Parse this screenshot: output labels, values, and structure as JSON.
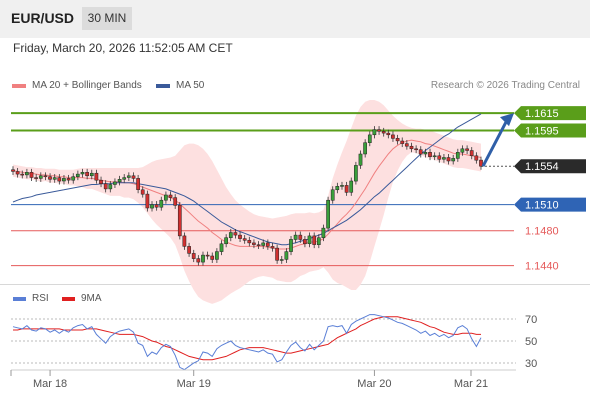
{
  "header": {
    "pair": "EUR/USD",
    "timeframe": "30 MIN"
  },
  "datetime": "Friday, March 20, 2026 11:52:05 AM CET",
  "legend": {
    "ma20_label": "MA 20 + Bollinger Bands",
    "ma50_label": "MA 50",
    "credit": "Research © 2026 Trading Central"
  },
  "rsi_legend": {
    "rsi_label": "RSI",
    "ma_label": "9MA"
  },
  "colors": {
    "up": "#3a9e3a",
    "down": "#d03030",
    "bb_fill": "#fde0e0",
    "ma20": "#f08080",
    "ma50": "#3a5a9a",
    "green_level": "#5a9e1a",
    "blue_level": "#2f64b5",
    "red_level": "#e55a5a",
    "current": "#2a2a2a",
    "rsi": "#5a7fd6",
    "rsi_ma": "#e02020"
  },
  "chart_data": [
    {
      "type": "candlestick",
      "title": "EUR/USD 30 MIN",
      "x_tick_labels": [
        "Mar 18",
        "Mar 19",
        "Mar 20",
        "Mar 21"
      ],
      "ylim": [
        1.142,
        1.163
      ],
      "levels": [
        {
          "value": 1.1615,
          "label": "1.1615",
          "kind": "resistance"
        },
        {
          "value": 1.1595,
          "label": "1.1595",
          "kind": "resistance"
        },
        {
          "value": 1.1554,
          "label": "1.1554",
          "kind": "current"
        },
        {
          "value": 1.151,
          "label": "1.1510",
          "kind": "pivot"
        },
        {
          "value": 1.148,
          "label": "1.1480",
          "kind": "support"
        },
        {
          "value": 1.144,
          "label": "1.1440",
          "kind": "support"
        }
      ],
      "close": [
        1.1548,
        1.1545,
        1.1544,
        1.1547,
        1.1541,
        1.154,
        1.1543,
        1.1542,
        1.1539,
        1.1541,
        1.1537,
        1.154,
        1.1538,
        1.1542,
        1.1545,
        1.1547,
        1.1543,
        1.1546,
        1.1538,
        1.1534,
        1.1528,
        1.1533,
        1.1536,
        1.1539,
        1.1541,
        1.1543,
        1.154,
        1.1527,
        1.1522,
        1.1506,
        1.151,
        1.1507,
        1.1515,
        1.1521,
        1.1518,
        1.1509,
        1.1474,
        1.1462,
        1.1454,
        1.1448,
        1.1444,
        1.1452,
        1.1451,
        1.1447,
        1.1456,
        1.1465,
        1.1472,
        1.1478,
        1.1475,
        1.1471,
        1.1469,
        1.1466,
        1.1464,
        1.1463,
        1.1466,
        1.1462,
        1.146,
        1.1446,
        1.1447,
        1.1456,
        1.147,
        1.1475,
        1.147,
        1.1465,
        1.1474,
        1.1464,
        1.1472,
        1.1483,
        1.1515,
        1.1527,
        1.1531,
        1.1532,
        1.1524,
        1.1537,
        1.1555,
        1.1568,
        1.1581,
        1.159,
        1.1596,
        1.1594,
        1.1592,
        1.159,
        1.1586,
        1.1583,
        1.158,
        1.1577,
        1.1574,
        1.1573,
        1.1568,
        1.157,
        1.1565,
        1.1566,
        1.1562,
        1.1564,
        1.156,
        1.1563,
        1.157,
        1.1574,
        1.1572,
        1.1566,
        1.1561,
        1.1554
      ],
      "ma20": [
        1.1549,
        1.1548,
        1.1547,
        1.1546,
        1.1546,
        1.1545,
        1.1544,
        1.1544,
        1.1543,
        1.1543,
        1.1542,
        1.1542,
        1.1541,
        1.1541,
        1.1541,
        1.1541,
        1.154,
        1.154,
        1.1539,
        1.1538,
        1.1537,
        1.1536,
        1.1536,
        1.1536,
        1.1535,
        1.1535,
        1.1534,
        1.1532,
        1.153,
        1.1528,
        1.1526,
        1.1524,
        1.1522,
        1.152,
        1.1518,
        1.1515,
        1.1511,
        1.1506,
        1.1501,
        1.1496,
        1.1491,
        1.1487,
        1.1483,
        1.1478,
        1.1474,
        1.147,
        1.1467,
        1.1465,
        1.1463,
        1.1462,
        1.1462,
        1.1462,
        1.1462,
        1.1462,
        1.1462,
        1.1461,
        1.146,
        1.1459,
        1.1459,
        1.1459,
        1.146,
        1.1462,
        1.1464,
        1.1465,
        1.1467,
        1.1467,
        1.1468,
        1.1471,
        1.1476,
        1.1482,
        1.1488,
        1.1494,
        1.1499,
        1.1505,
        1.1512,
        1.152,
        1.1528,
        1.1537,
        1.1546,
        1.1554,
        1.1561,
        1.1568,
        1.1574,
        1.1578,
        1.1581,
        1.1583,
        1.1584,
        1.1583,
        1.1582,
        1.158,
        1.1579,
        1.1577,
        1.1575,
        1.1573,
        1.1571,
        1.1569,
        1.1568,
        1.1568,
        1.1567,
        1.1566,
        1.1565,
        1.1564
      ],
      "bb_upper": [
        1.1556,
        1.1555,
        1.1554,
        1.1553,
        1.1553,
        1.1552,
        1.1552,
        1.1551,
        1.1551,
        1.1551,
        1.155,
        1.155,
        1.155,
        1.155,
        1.1551,
        1.1552,
        1.1552,
        1.1552,
        1.1552,
        1.1552,
        1.1552,
        1.1552,
        1.1552,
        1.1552,
        1.1552,
        1.1552,
        1.1552,
        1.1552,
        1.1553,
        1.1556,
        1.1559,
        1.1561,
        1.1562,
        1.1563,
        1.1564,
        1.1566,
        1.1572,
        1.1578,
        1.158,
        1.158,
        1.1578,
        1.1574,
        1.1568,
        1.156,
        1.155,
        1.154,
        1.153,
        1.1522,
        1.1515,
        1.151,
        1.1506,
        1.1502,
        1.1499,
        1.1497,
        1.1496,
        1.1495,
        1.1494,
        1.1495,
        1.1496,
        1.1497,
        1.1499,
        1.15,
        1.15,
        1.15,
        1.1501,
        1.15,
        1.1501,
        1.1504,
        1.152,
        1.154,
        1.1556,
        1.157,
        1.1583,
        1.1598,
        1.1612,
        1.1622,
        1.1628,
        1.163,
        1.163,
        1.1628,
        1.1624,
        1.1618,
        1.1612,
        1.1607,
        1.1603,
        1.16,
        1.1598,
        1.1597,
        1.1597,
        1.1596,
        1.1595,
        1.1593,
        1.1591,
        1.1589,
        1.1587,
        1.1585,
        1.1584,
        1.1584,
        1.1583,
        1.1582,
        1.1581,
        1.158
      ],
      "bb_lower": [
        1.1542,
        1.1541,
        1.154,
        1.1539,
        1.1539,
        1.1538,
        1.1536,
        1.1537,
        1.1535,
        1.1535,
        1.1534,
        1.1534,
        1.1532,
        1.1532,
        1.1531,
        1.153,
        1.1528,
        1.1528,
        1.1526,
        1.1524,
        1.1522,
        1.152,
        1.152,
        1.152,
        1.1518,
        1.1518,
        1.1516,
        1.1512,
        1.1507,
        1.15,
        1.1493,
        1.1487,
        1.1482,
        1.1477,
        1.1472,
        1.1464,
        1.145,
        1.1434,
        1.1422,
        1.1412,
        1.1404,
        1.14,
        1.1398,
        1.1396,
        1.1398,
        1.14,
        1.1404,
        1.1408,
        1.1411,
        1.1414,
        1.1418,
        1.1422,
        1.1425,
        1.1427,
        1.1428,
        1.1427,
        1.1426,
        1.1423,
        1.1422,
        1.1421,
        1.1421,
        1.1424,
        1.1428,
        1.143,
        1.1433,
        1.1434,
        1.1435,
        1.1438,
        1.1432,
        1.1424,
        1.142,
        1.1418,
        1.1415,
        1.1412,
        1.1412,
        1.1418,
        1.1428,
        1.1444,
        1.1462,
        1.148,
        1.1498,
        1.1518,
        1.1536,
        1.1549,
        1.1559,
        1.1566,
        1.157,
        1.1569,
        1.1567,
        1.1564,
        1.1563,
        1.1561,
        1.1559,
        1.1557,
        1.1555,
        1.1553,
        1.1552,
        1.1552,
        1.1551,
        1.155,
        1.1549,
        1.1548
      ],
      "ma50": [
        1.1513,
        1.1515,
        1.1517,
        1.1518,
        1.1519,
        1.1521,
        1.1522,
        1.1523,
        1.1524,
        1.1525,
        1.1526,
        1.1527,
        1.1528,
        1.1529,
        1.153,
        1.1531,
        1.1532,
        1.1533,
        1.1533,
        1.1534,
        1.1534,
        1.1534,
        1.1535,
        1.1535,
        1.1535,
        1.1535,
        1.1535,
        1.1534,
        1.1533,
        1.1532,
        1.1531,
        1.153,
        1.1529,
        1.1528,
        1.1526,
        1.1524,
        1.1522,
        1.152,
        1.1517,
        1.1514,
        1.151,
        1.1506,
        1.1502,
        1.1498,
        1.1494,
        1.149,
        1.1487,
        1.1484,
        1.1481,
        1.1479,
        1.1477,
        1.1475,
        1.1473,
        1.1471,
        1.1469,
        1.1467,
        1.1466,
        1.1465,
        1.1464,
        1.1464,
        1.1465,
        1.1466,
        1.1468,
        1.1469,
        1.1471,
        1.1473,
        1.1475,
        1.1477,
        1.148,
        1.1483,
        1.1486,
        1.1489,
        1.1492,
        1.1496,
        1.15,
        1.1504,
        1.1509,
        1.1514,
        1.1519,
        1.1523,
        1.1528,
        1.1533,
        1.1538,
        1.1543,
        1.1548,
        1.1553,
        1.1558,
        1.1563,
        1.1568,
        1.1572,
        1.1576,
        1.158,
        1.1584,
        1.1588,
        1.1591,
        1.1595,
        1.1599,
        1.1602,
        1.1605,
        1.1608,
        1.1611,
        1.1614
      ]
    },
    {
      "type": "line",
      "title": "RSI",
      "y_tick_labels": [
        "70",
        "50",
        "30"
      ],
      "ylim": [
        20,
        80
      ],
      "series": [
        {
          "name": "RSI",
          "values": [
            63,
            62,
            61,
            64,
            60,
            59,
            62,
            61,
            58,
            60,
            57,
            60,
            58,
            62,
            64,
            65,
            61,
            63,
            56,
            52,
            48,
            54,
            57,
            59,
            60,
            61,
            58,
            48,
            46,
            36,
            40,
            38,
            44,
            47,
            45,
            37,
            26,
            24,
            27,
            30,
            32,
            40,
            39,
            36,
            43,
            46,
            48,
            50,
            46,
            44,
            43,
            42,
            41,
            40,
            42,
            39,
            38,
            31,
            33,
            40,
            46,
            49,
            44,
            41,
            47,
            42,
            46,
            50,
            63,
            64,
            63,
            64,
            57,
            65,
            68,
            70,
            72,
            74,
            74,
            73,
            72,
            71,
            69,
            67,
            66,
            64,
            62,
            60,
            57,
            59,
            55,
            57,
            54,
            56,
            53,
            55,
            62,
            64,
            61,
            52,
            45,
            53
          ]
        },
        {
          "name": "9MA",
          "values": [
            60,
            60,
            61,
            61,
            61,
            61,
            61,
            61,
            61,
            61,
            61,
            60,
            60,
            60,
            60,
            60,
            61,
            61,
            61,
            60,
            59,
            58,
            57,
            56,
            56,
            56,
            56,
            55,
            54,
            52,
            50,
            49,
            47,
            45,
            44,
            42,
            40,
            38,
            36,
            35,
            34,
            33,
            33,
            33,
            34,
            35,
            36,
            38,
            40,
            42,
            43,
            44,
            44,
            44,
            44,
            43,
            42,
            41,
            40,
            39,
            39,
            40,
            41,
            42,
            43,
            44,
            45,
            46,
            47,
            50,
            53,
            55,
            57,
            59,
            61,
            64,
            66,
            68,
            70,
            71,
            72,
            72,
            72,
            72,
            71,
            70,
            69,
            68,
            67,
            65,
            63,
            62,
            60,
            58,
            57,
            56,
            56,
            57,
            57,
            57,
            56,
            56
          ]
        }
      ]
    }
  ]
}
